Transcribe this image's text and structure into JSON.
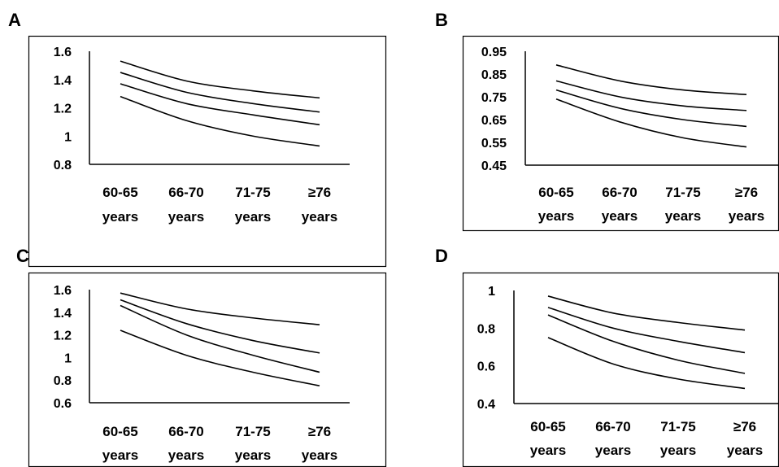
{
  "chart_data": [
    {
      "panel": "A",
      "type": "line",
      "categories": [
        [
          "60-65",
          "years"
        ],
        [
          "66-70",
          "years"
        ],
        [
          "71-75",
          "years"
        ],
        [
          "≥76",
          "years"
        ]
      ],
      "yticks": [
        "1.6",
        "1.4",
        "1.2",
        "1",
        "0.8"
      ],
      "ylim": [
        0.8,
        1.6
      ],
      "series": [
        {
          "values": [
            1.53,
            1.39,
            1.32,
            1.27
          ]
        },
        {
          "values": [
            1.45,
            1.31,
            1.23,
            1.17
          ]
        },
        {
          "values": [
            1.37,
            1.23,
            1.15,
            1.08
          ]
        },
        {
          "values": [
            1.28,
            1.11,
            1.0,
            0.93
          ]
        }
      ]
    },
    {
      "panel": "B",
      "type": "line",
      "categories": [
        [
          "60-65",
          "years"
        ],
        [
          "66-70",
          "years"
        ],
        [
          "71-75",
          "years"
        ],
        [
          "≥76",
          "years"
        ]
      ],
      "yticks": [
        "0.95",
        "0.85",
        "0.75",
        "0.65",
        "0.55",
        "0.45"
      ],
      "ylim": [
        0.45,
        0.95
      ],
      "series": [
        {
          "values": [
            0.89,
            0.82,
            0.78,
            0.76
          ]
        },
        {
          "values": [
            0.82,
            0.75,
            0.71,
            0.69
          ]
        },
        {
          "values": [
            0.78,
            0.7,
            0.65,
            0.62
          ]
        },
        {
          "values": [
            0.74,
            0.64,
            0.57,
            0.53
          ]
        }
      ]
    },
    {
      "panel": "C",
      "type": "line",
      "categories": [
        [
          "60-65",
          "years"
        ],
        [
          "66-70",
          "years"
        ],
        [
          "71-75",
          "years"
        ],
        [
          "≥76",
          "years"
        ]
      ],
      "yticks": [
        "1.6",
        "1.4",
        "1.2",
        "1",
        "0.8",
        "0.6"
      ],
      "ylim": [
        0.6,
        1.6
      ],
      "series": [
        {
          "values": [
            1.57,
            1.43,
            1.35,
            1.29
          ]
        },
        {
          "values": [
            1.51,
            1.3,
            1.15,
            1.04
          ]
        },
        {
          "values": [
            1.46,
            1.2,
            1.02,
            0.87
          ]
        },
        {
          "values": [
            1.24,
            1.02,
            0.87,
            0.75
          ]
        }
      ]
    },
    {
      "panel": "D",
      "type": "line",
      "categories": [
        [
          "60-65",
          "years"
        ],
        [
          "66-70",
          "years"
        ],
        [
          "71-75",
          "years"
        ],
        [
          "≥76",
          "years"
        ]
      ],
      "yticks": [
        "1",
        "0.8",
        "0.6",
        "0.4"
      ],
      "ylim": [
        0.4,
        1.0
      ],
      "series": [
        {
          "values": [
            0.97,
            0.88,
            0.83,
            0.79
          ]
        },
        {
          "values": [
            0.91,
            0.8,
            0.73,
            0.67
          ]
        },
        {
          "values": [
            0.87,
            0.73,
            0.63,
            0.56
          ]
        },
        {
          "values": [
            0.75,
            0.61,
            0.53,
            0.48
          ]
        }
      ]
    }
  ]
}
